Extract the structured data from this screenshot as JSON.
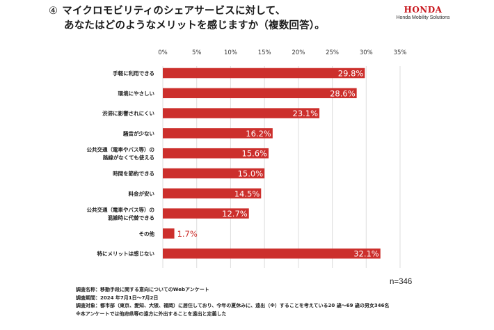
{
  "header": {
    "question_number": "④",
    "title_line1": "マイクロモビリティのシェアサービスに対して、",
    "title_line2": "あなたはどのようなメリットを感じますか（複数回答）。"
  },
  "logo": {
    "brand": "HONDA",
    "subtitle": "Honda Mobility Solutions"
  },
  "colors": {
    "bar": "#cc2f2c",
    "grid": "#dddddd",
    "label_inside": "#ffffff",
    "label_outside": "#cc2f2c"
  },
  "chart_data": {
    "type": "bar",
    "orientation": "horizontal",
    "title": "マイクロモビリティのシェアサービスに対して、あなたはどのようなメリットを感じますか（複数回答）。",
    "categories": [
      "手軽に利用できる",
      "環境にやさしい",
      "渋滞に影響されにくい",
      "騒音が少ない",
      "公共交通（電車やバス等）の\n路線がなくても使える",
      "時間を節約できる",
      "料金が安い",
      "公共交通（電車やバス等）の\n混雑時に代替できる",
      "その他",
      "特にメリットは感じない"
    ],
    "values": [
      29.8,
      28.6,
      23.1,
      16.2,
      15.6,
      15.0,
      14.5,
      12.7,
      1.7,
      32.1
    ],
    "value_labels": [
      "29.8%",
      "28.6%",
      "23.1%",
      "16.2%",
      "15.6%",
      "15.0%",
      "14.5%",
      "12.7%",
      "1.7%",
      "32.1%"
    ],
    "x_ticks": [
      0,
      5,
      10,
      15,
      20,
      25,
      30,
      35
    ],
    "x_tick_labels": [
      "0%",
      "5%",
      "10%",
      "15%",
      "20%",
      "25%",
      "30%",
      "35%"
    ],
    "xlim": [
      0,
      35
    ],
    "xlabel": "",
    "ylabel": "",
    "grid": "vertical",
    "axis_position": "top",
    "legend": "none"
  },
  "sample_size": "n=346",
  "notes": [
    "調査名称：移動手段に関する意向についてのWebアンケート",
    "調査期間：2024 年7月1日〜7月2日",
    "調査対象：都市部（東京、愛知、大阪、福岡）に居住しており、今年の夏休みに、遠出（※）することを考えている20 歳〜69 歳の男女346名",
    "※本アンケートでは他府県等の遠方に外出することを遠出と定義した"
  ]
}
